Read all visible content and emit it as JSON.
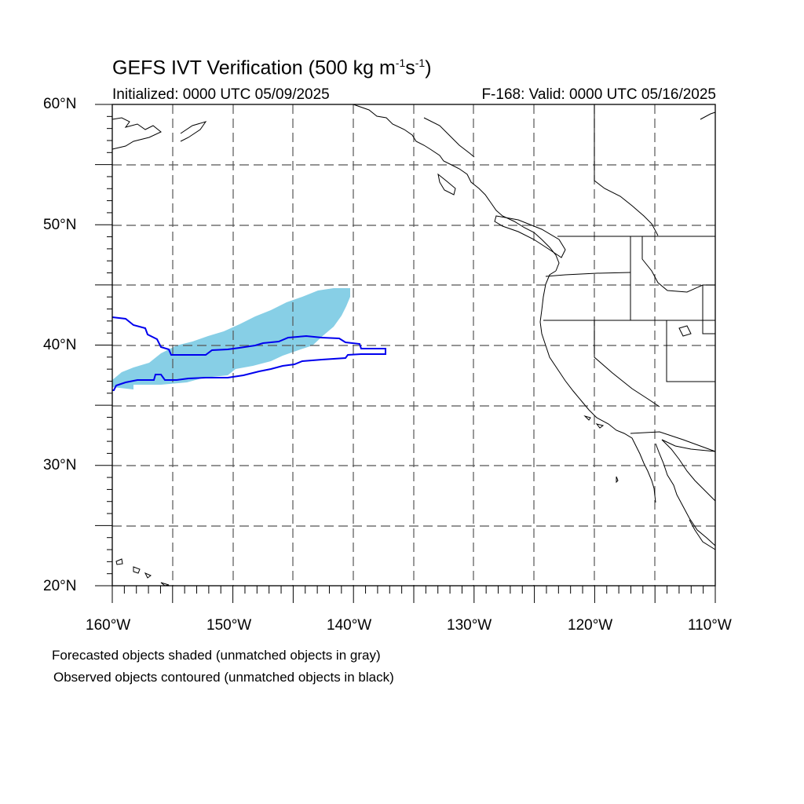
{
  "header": {
    "title_main": "GEFS IVT Verification (500 kg m",
    "title_exp1": "-1",
    "title_mid": "s",
    "title_exp2": "-1",
    "title_end": ")",
    "initialized": "Initialized: 0000 UTC 05/09/2025",
    "valid": "F-168: Valid: 0000 UTC 05/16/2025"
  },
  "axes": {
    "lat_labels": [
      "60°N",
      "50°N",
      "40°N",
      "30°N",
      "20°N"
    ],
    "lon_labels": [
      "160°W",
      "150°W",
      "140°W",
      "130°W",
      "120°W",
      "110°W"
    ]
  },
  "captions": {
    "line1": "Forecasted objects shaded (unmatched objects in gray)",
    "line2": "Observed objects contoured (unmatched objects in black)"
  },
  "colors": {
    "forecast_fill": "#87cfe6",
    "observed_contour": "#0000ee",
    "coastline": "#000000",
    "grid": "#555555"
  }
}
